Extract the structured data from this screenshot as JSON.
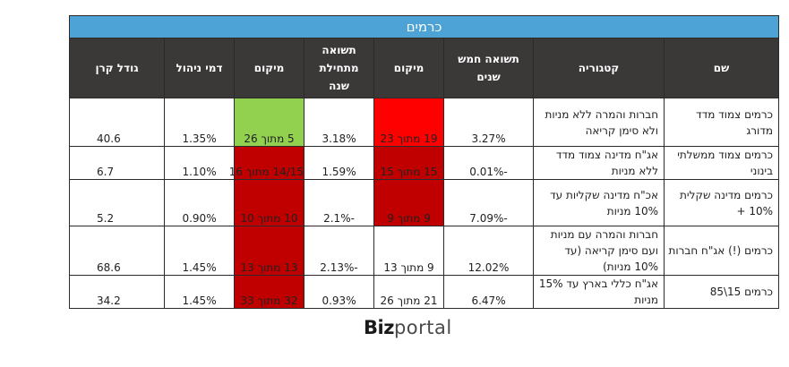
{
  "table": {
    "title": "כרמים",
    "headers": {
      "name": "שם",
      "category": "קטגוריה",
      "return5y": "תשואה חמש\nשנים",
      "rank5y": "מיקום",
      "returnYtd": "תשואה\nמתחילת\nשנה",
      "rankYtd": "מיקום",
      "fee": "דמי ניהול",
      "size": "גודל קרן"
    },
    "rows": [
      {
        "name": "כרמים צמוד מדד מדורג",
        "category": "חברות והמרה ללא מניות ולא סימן קריאה",
        "return5y": "3.27%",
        "rank5y": "19 מתוך 23",
        "returnYtd": "3.18%",
        "rankYtd": "5 מתוך 26",
        "fee": "1.35%",
        "size": "40.6"
      },
      {
        "name": "כרמים צמוד ממשלתי בינוני",
        "category": "אג\"ח מדינה צמוד מדד ללא מניות",
        "return5y": "-0.01%",
        "rank5y": "15 מתוך 15",
        "returnYtd": "1.59%",
        "rankYtd": "14/15 מתוך 16",
        "fee": "1.10%",
        "size": "6.7"
      },
      {
        "name": "כרמים מדינה שקלית 10% +",
        "category": "אכ\"ח מדינה שקליות עד 10% מניות",
        "return5y": "-7.09%",
        "rank5y": "9 מתוך 9",
        "returnYtd": "-2.1%",
        "rankYtd": "10 מתוך 10",
        "fee": "0.90%",
        "size": "5.2"
      },
      {
        "name": "כרמים (!) אג\"ח חברות",
        "category": "חברות והמרה עם מניות ועם סימן קריאה (עד 10% מניות)",
        "return5y": "12.02%",
        "rank5y": "9 מתוך 13",
        "returnYtd": "-2.13%",
        "rankYtd": "13 מתוך 13",
        "fee": "1.45%",
        "size": "68.6"
      },
      {
        "name": "כרמים 15\\85",
        "category": "אג\"ח כללי בארץ עד 15% מניות",
        "return5y": "6.47%",
        "rank5y": "21 מתוך 26",
        "returnYtd": "0.93%",
        "rankYtd": "32 מתוך 33",
        "fee": "1.45%",
        "size": "34.2"
      }
    ]
  },
  "logo": {
    "part1": "Biz",
    "part2": "portal"
  },
  "colors": {
    "title_bg": "#4da3d6",
    "header_bg": "#3b3838",
    "green": "#92d050",
    "red": "#ff0000",
    "dark_red": "#c00000"
  }
}
